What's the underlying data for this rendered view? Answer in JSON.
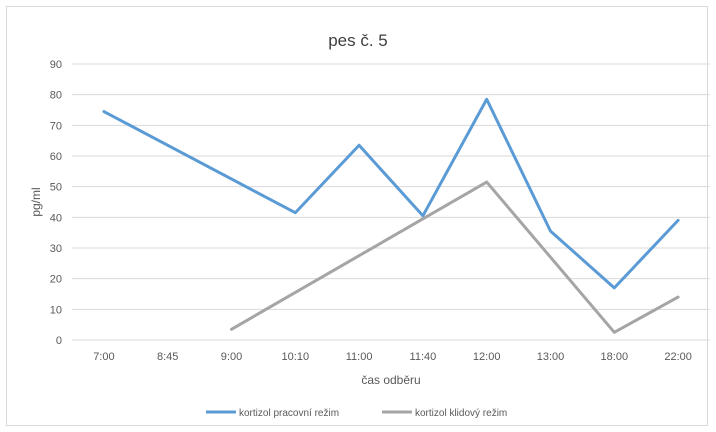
{
  "chart_data": {
    "type": "line",
    "title": "pes č. 5",
    "xlabel": "čas odběru",
    "ylabel": "pg/ml",
    "categories": [
      "7:00",
      "8:45",
      "9:00",
      "10:10",
      "11:00",
      "11:40",
      "12:00",
      "13:00",
      "18:00",
      "22:00"
    ],
    "ylim": [
      0,
      90
    ],
    "yticks": [
      "0",
      "10",
      "20",
      "30",
      "40",
      "50",
      "60",
      "70",
      "80",
      "90"
    ],
    "grid": true,
    "legend_position": "bottom",
    "series": [
      {
        "name": "kortizol pracovní režim",
        "color": "#5b9bd5",
        "values": [
          74.5,
          null,
          null,
          41.5,
          63.5,
          40.5,
          78.5,
          35.5,
          17,
          39
        ]
      },
      {
        "name": "kortizol klidový režim",
        "color": "#a5a5a5",
        "values": [
          null,
          null,
          3.5,
          null,
          null,
          null,
          51.5,
          null,
          2.5,
          14
        ]
      }
    ]
  }
}
